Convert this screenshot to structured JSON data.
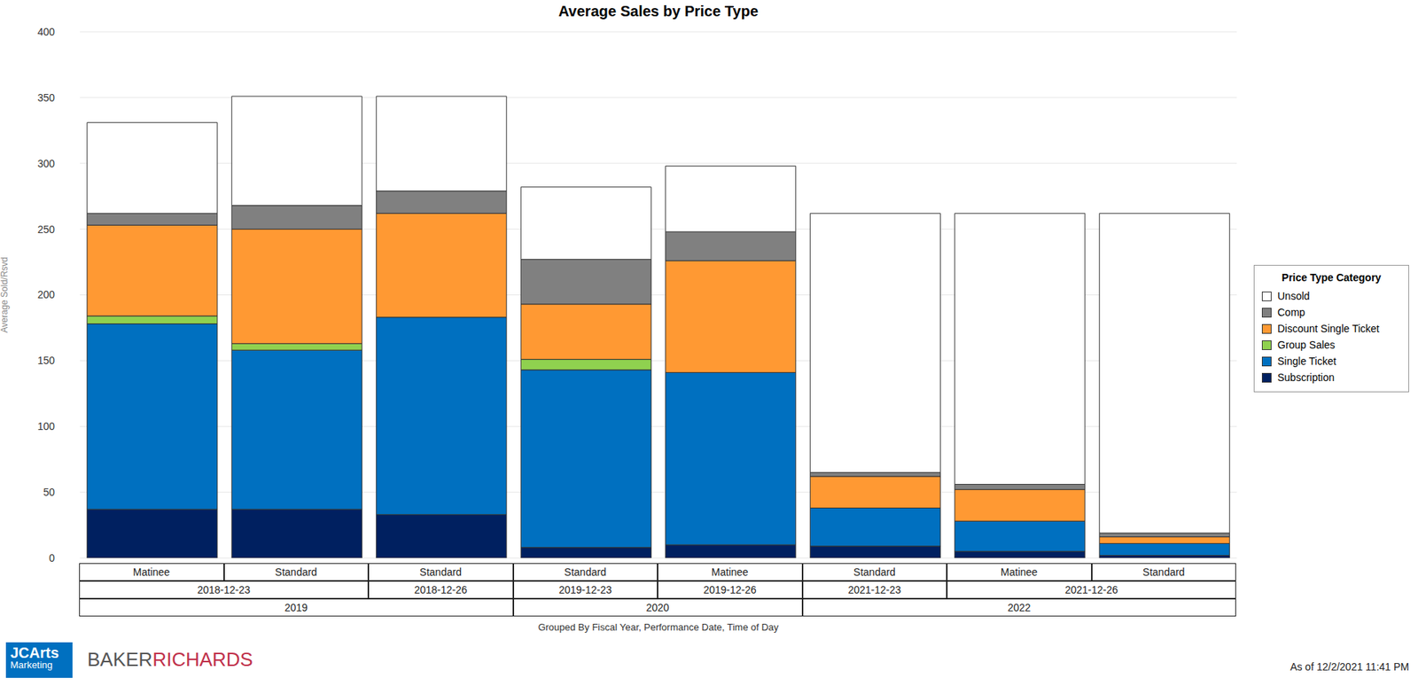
{
  "chart_data": {
    "type": "bar",
    "title": "Average Sales by Price Type",
    "y_label": "Average Sold/Rsvd",
    "x_label": "Grouped By Fiscal Year, Performance Date, Time of Day",
    "categories": [
      "Matinee",
      "Standard",
      "Standard",
      "Standard",
      "Matinee",
      "Standard",
      "Matinee",
      "Standard"
    ],
    "dates": [
      "2018-12-23",
      "2018-12-23",
      "2018-12-26",
      "2019-12-23",
      "2019-12-26",
      "2021-12-23",
      "2021-12-26",
      "2021-12-26"
    ],
    "fiscal_years": [
      "2019",
      "2019",
      "2019",
      "2020",
      "2020",
      "2022",
      "2022",
      "2022"
    ],
    "series": [
      {
        "name": "Subscription",
        "color": "#002060",
        "values": [
          37,
          37,
          33,
          8,
          10,
          9,
          5,
          2
        ]
      },
      {
        "name": "Single Ticket",
        "color": "#0070c0",
        "values": [
          141,
          121,
          150,
          135,
          131,
          29,
          23,
          9
        ]
      },
      {
        "name": "Group Sales",
        "color": "#8fd14f",
        "values": [
          6,
          5,
          0,
          8,
          0,
          0,
          0,
          0
        ]
      },
      {
        "name": "Discount Single Ticket",
        "color": "#ff9933",
        "values": [
          69,
          87,
          79,
          42,
          85,
          24,
          24,
          5
        ]
      },
      {
        "name": "Comp",
        "color": "#808080",
        "values": [
          9,
          18,
          17,
          34,
          22,
          3,
          4,
          3
        ]
      },
      {
        "name": "Unsold",
        "color": "#ffffff",
        "values": [
          69,
          83,
          72,
          55,
          50,
          197,
          206,
          243
        ]
      }
    ],
    "ylim": [
      0,
      400
    ],
    "yticks": [
      0,
      50,
      100,
      150,
      200,
      250,
      300,
      350,
      400
    ],
    "grid": true,
    "stacked": true,
    "legend": "right",
    "legend_title": "Price Type Category",
    "logos": [
      [
        "JCArts",
        "Marketing"
      ],
      [
        "BAKER",
        "RICHARDS"
      ]
    ],
    "footer": "As of 12/2/2021 11:41 PM"
  }
}
